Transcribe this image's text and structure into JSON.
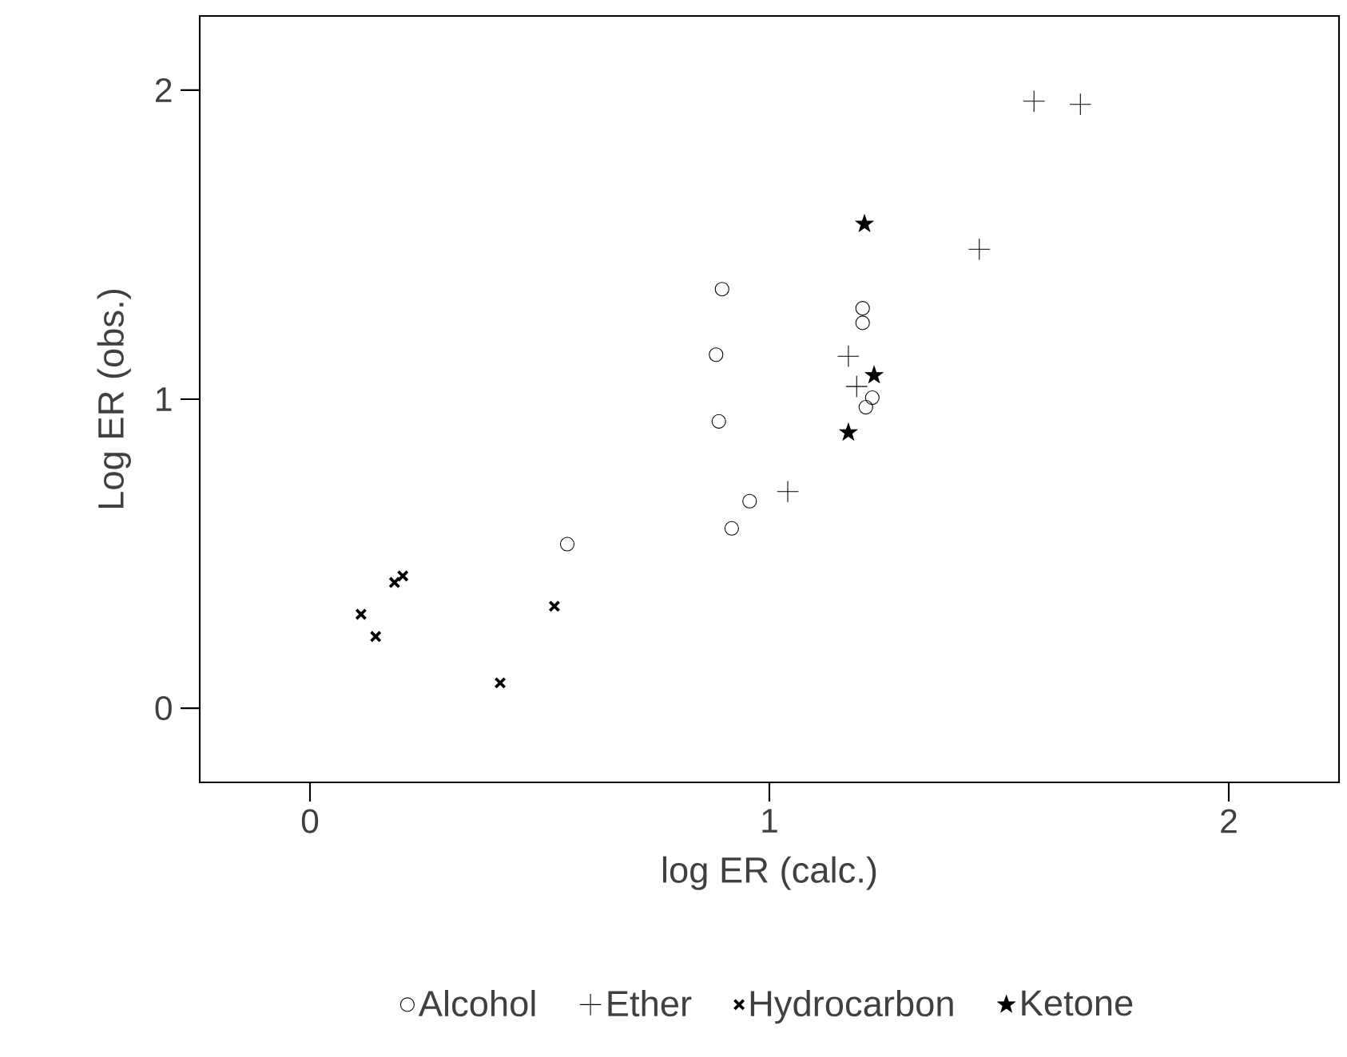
{
  "chart_data": {
    "type": "scatter",
    "xlabel": "log ER (calc.)",
    "ylabel": "Log ER (obs.)",
    "xlim": [
      -0.24,
      2.24
    ],
    "ylim": [
      -0.24,
      2.24
    ],
    "xticks": [
      0,
      1,
      2
    ],
    "yticks": [
      0,
      1,
      2
    ],
    "grid": false,
    "legend": "bottom",
    "series": [
      {
        "name": "Alcohol",
        "color": "#000000",
        "marker": "circle",
        "x": [
          0.918,
          0.957,
          0.56,
          0.89,
          0.884,
          0.897,
          1.203,
          1.203,
          1.21,
          1.224
        ],
        "values": [
          0.582,
          0.67,
          0.531,
          0.928,
          1.144,
          1.356,
          1.294,
          1.247,
          0.974,
          1.005
        ]
      },
      {
        "name": "Ether",
        "color": "#000000",
        "marker": "cross",
        "x": [
          1.04,
          1.172,
          1.19,
          1.457,
          1.576,
          1.677
        ],
        "values": [
          0.701,
          1.139,
          1.041,
          1.485,
          1.964,
          1.954
        ]
      },
      {
        "name": "Hydrocarbon",
        "color": "#000000",
        "marker": "x",
        "x": [
          0.111,
          0.143,
          0.184,
          0.202,
          0.532,
          0.414
        ],
        "values": [
          0.304,
          0.232,
          0.407,
          0.428,
          0.33,
          0.082
        ]
      },
      {
        "name": "Ketone",
        "color": "#000000",
        "marker": "star",
        "x": [
          1.207,
          1.228,
          1.172
        ],
        "values": [
          1.567,
          1.077,
          0.892
        ]
      }
    ]
  }
}
